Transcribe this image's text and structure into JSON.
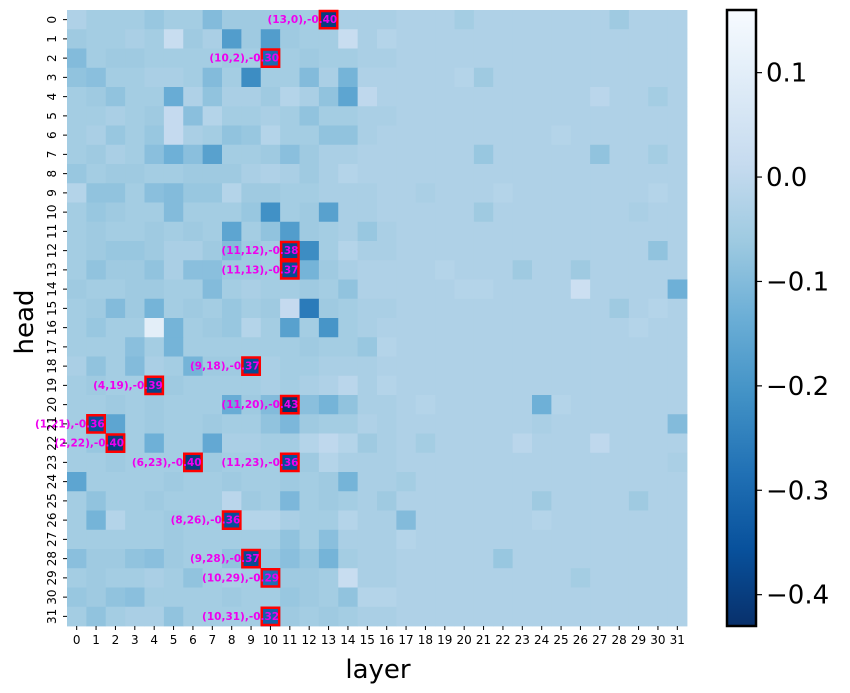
{
  "chart_data": {
    "type": "heatmap",
    "xlabel": "layer",
    "ylabel": "head",
    "x_ticks": [
      "0",
      "1",
      "2",
      "3",
      "4",
      "5",
      "6",
      "7",
      "8",
      "9",
      "10",
      "11",
      "12",
      "13",
      "14",
      "15",
      "16",
      "17",
      "18",
      "19",
      "20",
      "21",
      "22",
      "23",
      "24",
      "25",
      "26",
      "27",
      "28",
      "29",
      "30",
      "31"
    ],
    "y_ticks": [
      "0",
      "1",
      "2",
      "3",
      "4",
      "5",
      "6",
      "7",
      "8",
      "9",
      "10",
      "11",
      "12",
      "13",
      "14",
      "15",
      "16",
      "17",
      "18",
      "19",
      "20",
      "21",
      "22",
      "23",
      "24",
      "25",
      "26",
      "27",
      "28",
      "29",
      "30",
      "31"
    ],
    "colorscale": "Blues_r",
    "vmin": -0.43,
    "vmax": 0.16,
    "colorbar_ticks": [
      {
        "value": 0.1,
        "label": "0.1"
      },
      {
        "value": 0.0,
        "label": "0.0"
      },
      {
        "value": -0.1,
        "label": "−0.1"
      },
      {
        "value": -0.2,
        "label": "−0.2"
      },
      {
        "value": -0.3,
        "label": "−0.3"
      },
      {
        "value": -0.4,
        "label": "−0.4"
      }
    ],
    "highlight_color": "#ff0000",
    "annotation_color": "#ee00ee",
    "default_late_value": -0.03,
    "cells": {
      "0": [
        -0.03,
        -0.05,
        -0.05,
        -0.05,
        -0.07,
        -0.05,
        -0.05,
        -0.1,
        -0.06,
        -0.06,
        -0.06,
        -0.06,
        -0.05,
        -0.4,
        -0.04,
        -0.04,
        -0.04,
        -0.03,
        -0.03,
        -0.03,
        -0.05,
        -0.03,
        -0.03,
        -0.03,
        -0.03,
        -0.03,
        -0.03,
        -0.03,
        -0.06,
        -0.03,
        -0.03,
        -0.03
      ],
      "1": [
        -0.06,
        -0.05,
        -0.05,
        -0.04,
        -0.05,
        0.02,
        -0.06,
        -0.04,
        -0.18,
        -0.06,
        -0.18,
        -0.06,
        -0.05,
        -0.05,
        0.02,
        -0.04,
        -0.02,
        -0.03,
        -0.03,
        -0.03,
        -0.03,
        -0.03,
        -0.03,
        -0.03,
        -0.03,
        -0.03,
        -0.03,
        -0.03,
        -0.03,
        -0.03,
        -0.03,
        -0.03
      ],
      "2": [
        -0.1,
        -0.05,
        -0.06,
        -0.06,
        -0.05,
        -0.05,
        -0.05,
        -0.05,
        -0.06,
        -0.05,
        -0.3,
        -0.05,
        -0.06,
        -0.05,
        -0.05,
        -0.04,
        -0.04,
        -0.03,
        -0.03,
        -0.03,
        -0.03,
        -0.03,
        -0.03,
        -0.03,
        -0.03,
        -0.03,
        -0.03,
        -0.03,
        -0.03,
        -0.03,
        -0.03,
        -0.03
      ],
      "3": [
        -0.08,
        -0.09,
        -0.05,
        -0.05,
        -0.04,
        -0.04,
        -0.05,
        -0.1,
        -0.05,
        -0.22,
        -0.05,
        -0.05,
        -0.1,
        -0.04,
        -0.12,
        -0.03,
        -0.03,
        -0.03,
        -0.03,
        -0.03,
        -0.02,
        -0.06,
        -0.03,
        -0.03,
        -0.03,
        -0.03,
        -0.03,
        -0.03,
        -0.03,
        -0.03,
        -0.03,
        -0.03
      ],
      "4": [
        -0.05,
        -0.06,
        -0.08,
        -0.05,
        -0.05,
        -0.14,
        -0.03,
        -0.08,
        -0.04,
        -0.04,
        -0.06,
        -0.02,
        -0.04,
        -0.08,
        -0.16,
        0.0,
        -0.03,
        -0.03,
        -0.03,
        -0.03,
        -0.03,
        -0.03,
        -0.03,
        -0.03,
        -0.03,
        -0.03,
        -0.03,
        -0.01,
        -0.03,
        -0.03,
        -0.05,
        -0.03
      ],
      "5": [
        -0.05,
        -0.05,
        -0.04,
        -0.05,
        -0.06,
        0.01,
        -0.09,
        -0.02,
        -0.05,
        -0.05,
        -0.04,
        -0.05,
        -0.08,
        -0.05,
        -0.05,
        -0.04,
        -0.04,
        -0.03,
        -0.03,
        -0.03,
        -0.03,
        -0.03,
        -0.03,
        -0.03,
        -0.03,
        -0.03,
        -0.03,
        -0.03,
        -0.03,
        -0.03,
        -0.03,
        -0.03
      ],
      "6": [
        -0.05,
        -0.04,
        -0.07,
        -0.05,
        -0.07,
        0.01,
        -0.04,
        -0.05,
        -0.08,
        -0.07,
        -0.02,
        -0.05,
        -0.05,
        -0.08,
        -0.08,
        -0.04,
        -0.03,
        -0.03,
        -0.03,
        -0.03,
        -0.03,
        -0.03,
        -0.03,
        -0.03,
        -0.03,
        -0.02,
        -0.03,
        -0.03,
        -0.03,
        -0.03,
        -0.03,
        -0.03
      ],
      "7": [
        -0.05,
        -0.06,
        -0.04,
        -0.05,
        -0.09,
        -0.13,
        -0.09,
        -0.17,
        -0.05,
        -0.05,
        -0.06,
        -0.09,
        -0.06,
        -0.04,
        -0.04,
        -0.03,
        -0.03,
        -0.03,
        -0.03,
        -0.03,
        -0.03,
        -0.07,
        -0.03,
        -0.03,
        -0.03,
        -0.03,
        -0.03,
        -0.08,
        -0.03,
        -0.03,
        -0.05,
        -0.03
      ],
      "8": [
        -0.07,
        -0.05,
        -0.06,
        -0.06,
        -0.05,
        -0.05,
        -0.06,
        -0.06,
        -0.06,
        -0.04,
        -0.03,
        -0.04,
        -0.06,
        -0.04,
        -0.02,
        -0.03,
        -0.03,
        -0.03,
        -0.03,
        -0.03,
        -0.03,
        -0.03,
        -0.03,
        -0.03,
        -0.03,
        -0.03,
        -0.03,
        -0.03,
        -0.03,
        -0.03,
        -0.03,
        -0.03
      ],
      "9": [
        -0.02,
        -0.08,
        -0.08,
        -0.05,
        -0.09,
        -0.1,
        -0.07,
        -0.07,
        -0.02,
        -0.06,
        -0.06,
        -0.05,
        -0.05,
        -0.04,
        -0.04,
        -0.04,
        -0.03,
        -0.03,
        -0.04,
        -0.03,
        -0.03,
        -0.03,
        -0.02,
        -0.03,
        -0.03,
        -0.03,
        -0.03,
        -0.03,
        -0.03,
        -0.03,
        -0.02,
        -0.03
      ],
      "10": [
        -0.05,
        -0.07,
        -0.06,
        -0.05,
        -0.05,
        -0.1,
        -0.05,
        -0.05,
        -0.05,
        -0.07,
        -0.21,
        -0.05,
        -0.06,
        -0.17,
        -0.04,
        -0.04,
        -0.03,
        -0.03,
        -0.03,
        -0.03,
        -0.03,
        -0.06,
        -0.03,
        -0.03,
        -0.03,
        -0.03,
        -0.03,
        -0.03,
        -0.03,
        -0.04,
        -0.03,
        -0.03
      ],
      "11": [
        -0.05,
        -0.06,
        -0.05,
        -0.05,
        -0.06,
        -0.05,
        -0.06,
        -0.05,
        -0.16,
        -0.05,
        -0.08,
        -0.18,
        -0.06,
        -0.05,
        -0.04,
        -0.07,
        -0.04,
        -0.03,
        -0.03,
        -0.03,
        -0.03,
        -0.03,
        -0.03,
        -0.03,
        -0.03,
        -0.03,
        -0.03,
        -0.03,
        -0.03,
        -0.03,
        -0.03,
        -0.03
      ],
      "12": [
        -0.05,
        -0.06,
        -0.07,
        -0.07,
        -0.06,
        -0.04,
        -0.04,
        -0.06,
        -0.1,
        -0.06,
        -0.05,
        -0.38,
        -0.22,
        -0.05,
        -0.02,
        -0.04,
        -0.04,
        -0.03,
        -0.03,
        -0.03,
        -0.03,
        -0.03,
        -0.03,
        -0.03,
        -0.03,
        -0.03,
        -0.03,
        -0.03,
        -0.03,
        -0.03,
        -0.08,
        -0.03
      ],
      "13": [
        -0.05,
        -0.08,
        -0.06,
        -0.06,
        -0.08,
        -0.04,
        -0.09,
        -0.09,
        -0.06,
        -0.06,
        -0.05,
        -0.37,
        -0.12,
        -0.06,
        -0.04,
        -0.03,
        -0.03,
        -0.03,
        -0.03,
        -0.02,
        -0.03,
        -0.03,
        -0.03,
        -0.06,
        -0.03,
        -0.03,
        -0.06,
        -0.03,
        -0.03,
        -0.03,
        -0.03,
        -0.03
      ],
      "14": [
        -0.06,
        -0.05,
        -0.05,
        -0.06,
        -0.06,
        -0.05,
        -0.05,
        -0.1,
        -0.05,
        -0.04,
        -0.05,
        -0.05,
        -0.06,
        -0.05,
        -0.08,
        -0.03,
        -0.03,
        -0.03,
        -0.03,
        -0.03,
        -0.02,
        -0.02,
        -0.03,
        -0.03,
        -0.03,
        -0.03,
        0.03,
        -0.03,
        -0.03,
        -0.03,
        -0.03,
        -0.13
      ],
      "15": [
        -0.05,
        -0.06,
        -0.1,
        -0.06,
        -0.12,
        -0.05,
        -0.06,
        -0.05,
        -0.07,
        -0.05,
        -0.06,
        0.01,
        -0.26,
        -0.06,
        -0.05,
        -0.04,
        -0.04,
        -0.03,
        -0.03,
        -0.03,
        -0.03,
        -0.03,
        -0.03,
        -0.03,
        -0.03,
        -0.03,
        -0.03,
        -0.03,
        -0.06,
        -0.03,
        -0.02,
        -0.03
      ],
      "16": [
        -0.05,
        -0.07,
        -0.05,
        -0.05,
        0.1,
        -0.12,
        -0.05,
        -0.06,
        -0.07,
        -0.02,
        -0.05,
        -0.17,
        -0.05,
        -0.2,
        -0.05,
        -0.04,
        -0.03,
        -0.03,
        -0.03,
        -0.03,
        -0.03,
        -0.03,
        -0.03,
        -0.03,
        -0.03,
        -0.03,
        -0.03,
        -0.03,
        -0.03,
        -0.02,
        -0.03,
        -0.03
      ],
      "17": [
        -0.05,
        -0.05,
        -0.05,
        -0.09,
        -0.05,
        -0.12,
        -0.05,
        -0.05,
        -0.05,
        -0.05,
        -0.05,
        -0.05,
        -0.06,
        -0.05,
        -0.05,
        -0.07,
        -0.02,
        -0.03,
        -0.03,
        -0.03,
        -0.03,
        -0.03,
        -0.03,
        -0.03,
        -0.03,
        -0.03,
        -0.03,
        -0.03,
        -0.03,
        -0.03,
        -0.03,
        -0.03
      ],
      "18": [
        -0.04,
        -0.08,
        -0.05,
        -0.1,
        -0.04,
        -0.05,
        -0.12,
        -0.06,
        -0.06,
        -0.37,
        -0.04,
        -0.05,
        -0.05,
        -0.04,
        -0.04,
        -0.04,
        -0.03,
        -0.03,
        -0.03,
        -0.03,
        -0.03,
        -0.03,
        -0.03,
        -0.03,
        -0.03,
        -0.03,
        -0.03,
        -0.03,
        -0.03,
        -0.03,
        -0.03,
        -0.03
      ],
      "19": [
        -0.05,
        -0.06,
        -0.05,
        -0.05,
        -0.39,
        -0.06,
        -0.05,
        -0.05,
        -0.05,
        -0.05,
        -0.04,
        -0.05,
        -0.04,
        -0.03,
        -0.01,
        -0.04,
        -0.02,
        -0.03,
        -0.03,
        -0.03,
        -0.03,
        -0.03,
        -0.03,
        -0.03,
        -0.03,
        -0.03,
        -0.03,
        -0.03,
        -0.03,
        -0.03,
        -0.03,
        -0.03
      ],
      "20": [
        -0.05,
        -0.05,
        -0.06,
        -0.05,
        -0.06,
        -0.05,
        -0.05,
        -0.05,
        -0.14,
        -0.06,
        -0.1,
        -0.43,
        -0.09,
        -0.12,
        -0.08,
        -0.04,
        -0.04,
        -0.03,
        -0.02,
        -0.03,
        -0.03,
        -0.03,
        -0.03,
        -0.03,
        -0.13,
        -0.02,
        -0.03,
        -0.03,
        -0.03,
        -0.03,
        -0.03,
        -0.03
      ],
      "21": [
        -0.05,
        -0.36,
        -0.16,
        -0.05,
        -0.06,
        -0.05,
        -0.05,
        -0.06,
        -0.05,
        -0.05,
        -0.08,
        -0.11,
        -0.06,
        -0.05,
        -0.05,
        -0.03,
        -0.04,
        -0.03,
        -0.03,
        -0.03,
        -0.03,
        -0.03,
        -0.03,
        -0.03,
        -0.04,
        -0.03,
        -0.03,
        -0.03,
        -0.03,
        -0.03,
        -0.03,
        -0.1
      ],
      "22": [
        -0.05,
        -0.07,
        -0.4,
        -0.05,
        -0.13,
        -0.05,
        -0.05,
        -0.15,
        -0.04,
        -0.04,
        -0.05,
        -0.05,
        -0.02,
        0.0,
        -0.02,
        -0.06,
        -0.04,
        -0.03,
        -0.05,
        -0.03,
        -0.03,
        -0.03,
        -0.03,
        -0.01,
        -0.03,
        -0.03,
        -0.03,
        0.0,
        -0.03,
        -0.03,
        -0.03,
        -0.03
      ],
      "23": [
        -0.05,
        -0.05,
        -0.06,
        -0.05,
        -0.05,
        -0.05,
        -0.4,
        -0.06,
        -0.05,
        -0.05,
        -0.05,
        -0.36,
        -0.06,
        -0.02,
        -0.04,
        -0.04,
        -0.04,
        -0.03,
        -0.03,
        -0.03,
        -0.03,
        -0.03,
        -0.03,
        -0.03,
        -0.03,
        -0.03,
        -0.03,
        -0.03,
        -0.03,
        -0.03,
        -0.03,
        -0.04
      ],
      "24": [
        -0.16,
        -0.05,
        -0.05,
        -0.05,
        -0.05,
        -0.06,
        -0.05,
        -0.05,
        -0.06,
        -0.05,
        -0.05,
        -0.06,
        -0.05,
        -0.06,
        -0.12,
        -0.04,
        -0.04,
        -0.05,
        -0.03,
        -0.03,
        -0.03,
        -0.03,
        -0.03,
        -0.03,
        -0.03,
        -0.03,
        -0.03,
        -0.03,
        -0.03,
        -0.03,
        -0.03,
        -0.03
      ],
      "25": [
        -0.05,
        -0.08,
        -0.05,
        -0.05,
        -0.06,
        -0.05,
        -0.05,
        -0.05,
        -0.01,
        -0.06,
        -0.05,
        -0.11,
        -0.05,
        -0.06,
        -0.05,
        -0.04,
        -0.06,
        -0.03,
        -0.03,
        -0.03,
        -0.03,
        -0.03,
        -0.03,
        -0.03,
        -0.06,
        -0.03,
        -0.03,
        -0.03,
        -0.03,
        -0.06,
        -0.03,
        -0.03
      ],
      "26": [
        -0.05,
        -0.12,
        -0.02,
        -0.05,
        -0.05,
        -0.06,
        -0.05,
        -0.05,
        -0.36,
        -0.02,
        -0.02,
        -0.04,
        -0.05,
        -0.05,
        -0.02,
        -0.04,
        -0.04,
        -0.1,
        -0.03,
        -0.03,
        -0.03,
        -0.03,
        -0.03,
        -0.03,
        -0.02,
        -0.03,
        -0.03,
        -0.03,
        -0.03,
        -0.03,
        -0.03,
        -0.03
      ],
      "27": [
        -0.05,
        -0.05,
        -0.05,
        -0.05,
        -0.05,
        -0.06,
        -0.05,
        -0.05,
        -0.05,
        -0.05,
        -0.05,
        -0.08,
        -0.05,
        -0.09,
        -0.04,
        -0.04,
        -0.04,
        -0.02,
        -0.03,
        -0.03,
        -0.03,
        -0.03,
        -0.03,
        -0.03,
        -0.03,
        -0.03,
        -0.03,
        -0.03,
        -0.03,
        -0.03,
        -0.03,
        -0.03
      ],
      "28": [
        -0.09,
        -0.06,
        -0.06,
        -0.08,
        -0.09,
        -0.06,
        -0.05,
        -0.05,
        -0.08,
        -0.37,
        -0.07,
        -0.09,
        -0.07,
        -0.12,
        -0.05,
        -0.04,
        -0.04,
        -0.03,
        -0.03,
        -0.03,
        -0.03,
        -0.03,
        -0.07,
        -0.03,
        -0.03,
        -0.03,
        -0.03,
        -0.03,
        -0.03,
        -0.03,
        -0.03,
        -0.03
      ],
      "29": [
        -0.05,
        -0.06,
        -0.05,
        -0.05,
        -0.04,
        -0.05,
        -0.08,
        -0.05,
        -0.04,
        -0.05,
        -0.29,
        -0.06,
        -0.06,
        -0.05,
        0.02,
        -0.04,
        -0.04,
        -0.03,
        -0.03,
        -0.03,
        -0.03,
        -0.03,
        -0.03,
        -0.03,
        -0.03,
        -0.03,
        -0.05,
        -0.03,
        -0.03,
        -0.03,
        -0.03,
        -0.03
      ],
      "30": [
        -0.07,
        -0.06,
        -0.08,
        -0.09,
        -0.05,
        -0.05,
        -0.05,
        -0.05,
        -0.06,
        -0.05,
        -0.05,
        -0.07,
        -0.06,
        -0.05,
        -0.08,
        -0.02,
        -0.02,
        -0.03,
        -0.03,
        -0.03,
        -0.03,
        -0.03,
        -0.03,
        -0.03,
        -0.03,
        -0.03,
        -0.03,
        -0.03,
        -0.03,
        -0.03,
        -0.03,
        -0.03
      ],
      "31": [
        -0.05,
        -0.08,
        -0.05,
        -0.04,
        -0.04,
        -0.08,
        -0.05,
        -0.05,
        -0.05,
        -0.05,
        -0.32,
        -0.06,
        -0.05,
        -0.06,
        -0.05,
        -0.04,
        -0.04,
        -0.03,
        -0.03,
        -0.03,
        -0.03,
        -0.03,
        -0.03,
        -0.03,
        -0.03,
        -0.03,
        -0.03,
        -0.03,
        -0.03,
        -0.03,
        -0.03,
        -0.03
      ]
    },
    "highlights": [
      {
        "layer": 13,
        "head": 0,
        "value": -0.4,
        "label": "(13,0),-0.40"
      },
      {
        "layer": 10,
        "head": 2,
        "value": -0.3,
        "label": "(10,2),-0.30"
      },
      {
        "layer": 11,
        "head": 12,
        "value": -0.38,
        "label": "(11,12),-0.38"
      },
      {
        "layer": 11,
        "head": 13,
        "value": -0.37,
        "label": "(11,13),-0.37"
      },
      {
        "layer": 9,
        "head": 18,
        "value": -0.37,
        "label": "(9,18),-0.37"
      },
      {
        "layer": 4,
        "head": 19,
        "value": -0.39,
        "label": "(4,19),-0.39"
      },
      {
        "layer": 11,
        "head": 20,
        "value": -0.43,
        "label": "(11,20),-0.43"
      },
      {
        "layer": 1,
        "head": 21,
        "value": -0.36,
        "label": "(1,21),-0.36"
      },
      {
        "layer": 2,
        "head": 22,
        "value": -0.4,
        "label": "(2,22),-0.40"
      },
      {
        "layer": 6,
        "head": 23,
        "value": -0.4,
        "label": "(6,23),-0.40"
      },
      {
        "layer": 11,
        "head": 23,
        "value": -0.36,
        "label": "(11,23),-0.36"
      },
      {
        "layer": 8,
        "head": 26,
        "value": -0.36,
        "label": "(8,26),-0.36"
      },
      {
        "layer": 9,
        "head": 28,
        "value": -0.37,
        "label": "(9,28),-0.37"
      },
      {
        "layer": 10,
        "head": 29,
        "value": -0.29,
        "label": "(10,29),-0.29"
      },
      {
        "layer": 10,
        "head": 31,
        "value": -0.32,
        "label": "(10,31),-0.32"
      }
    ]
  }
}
